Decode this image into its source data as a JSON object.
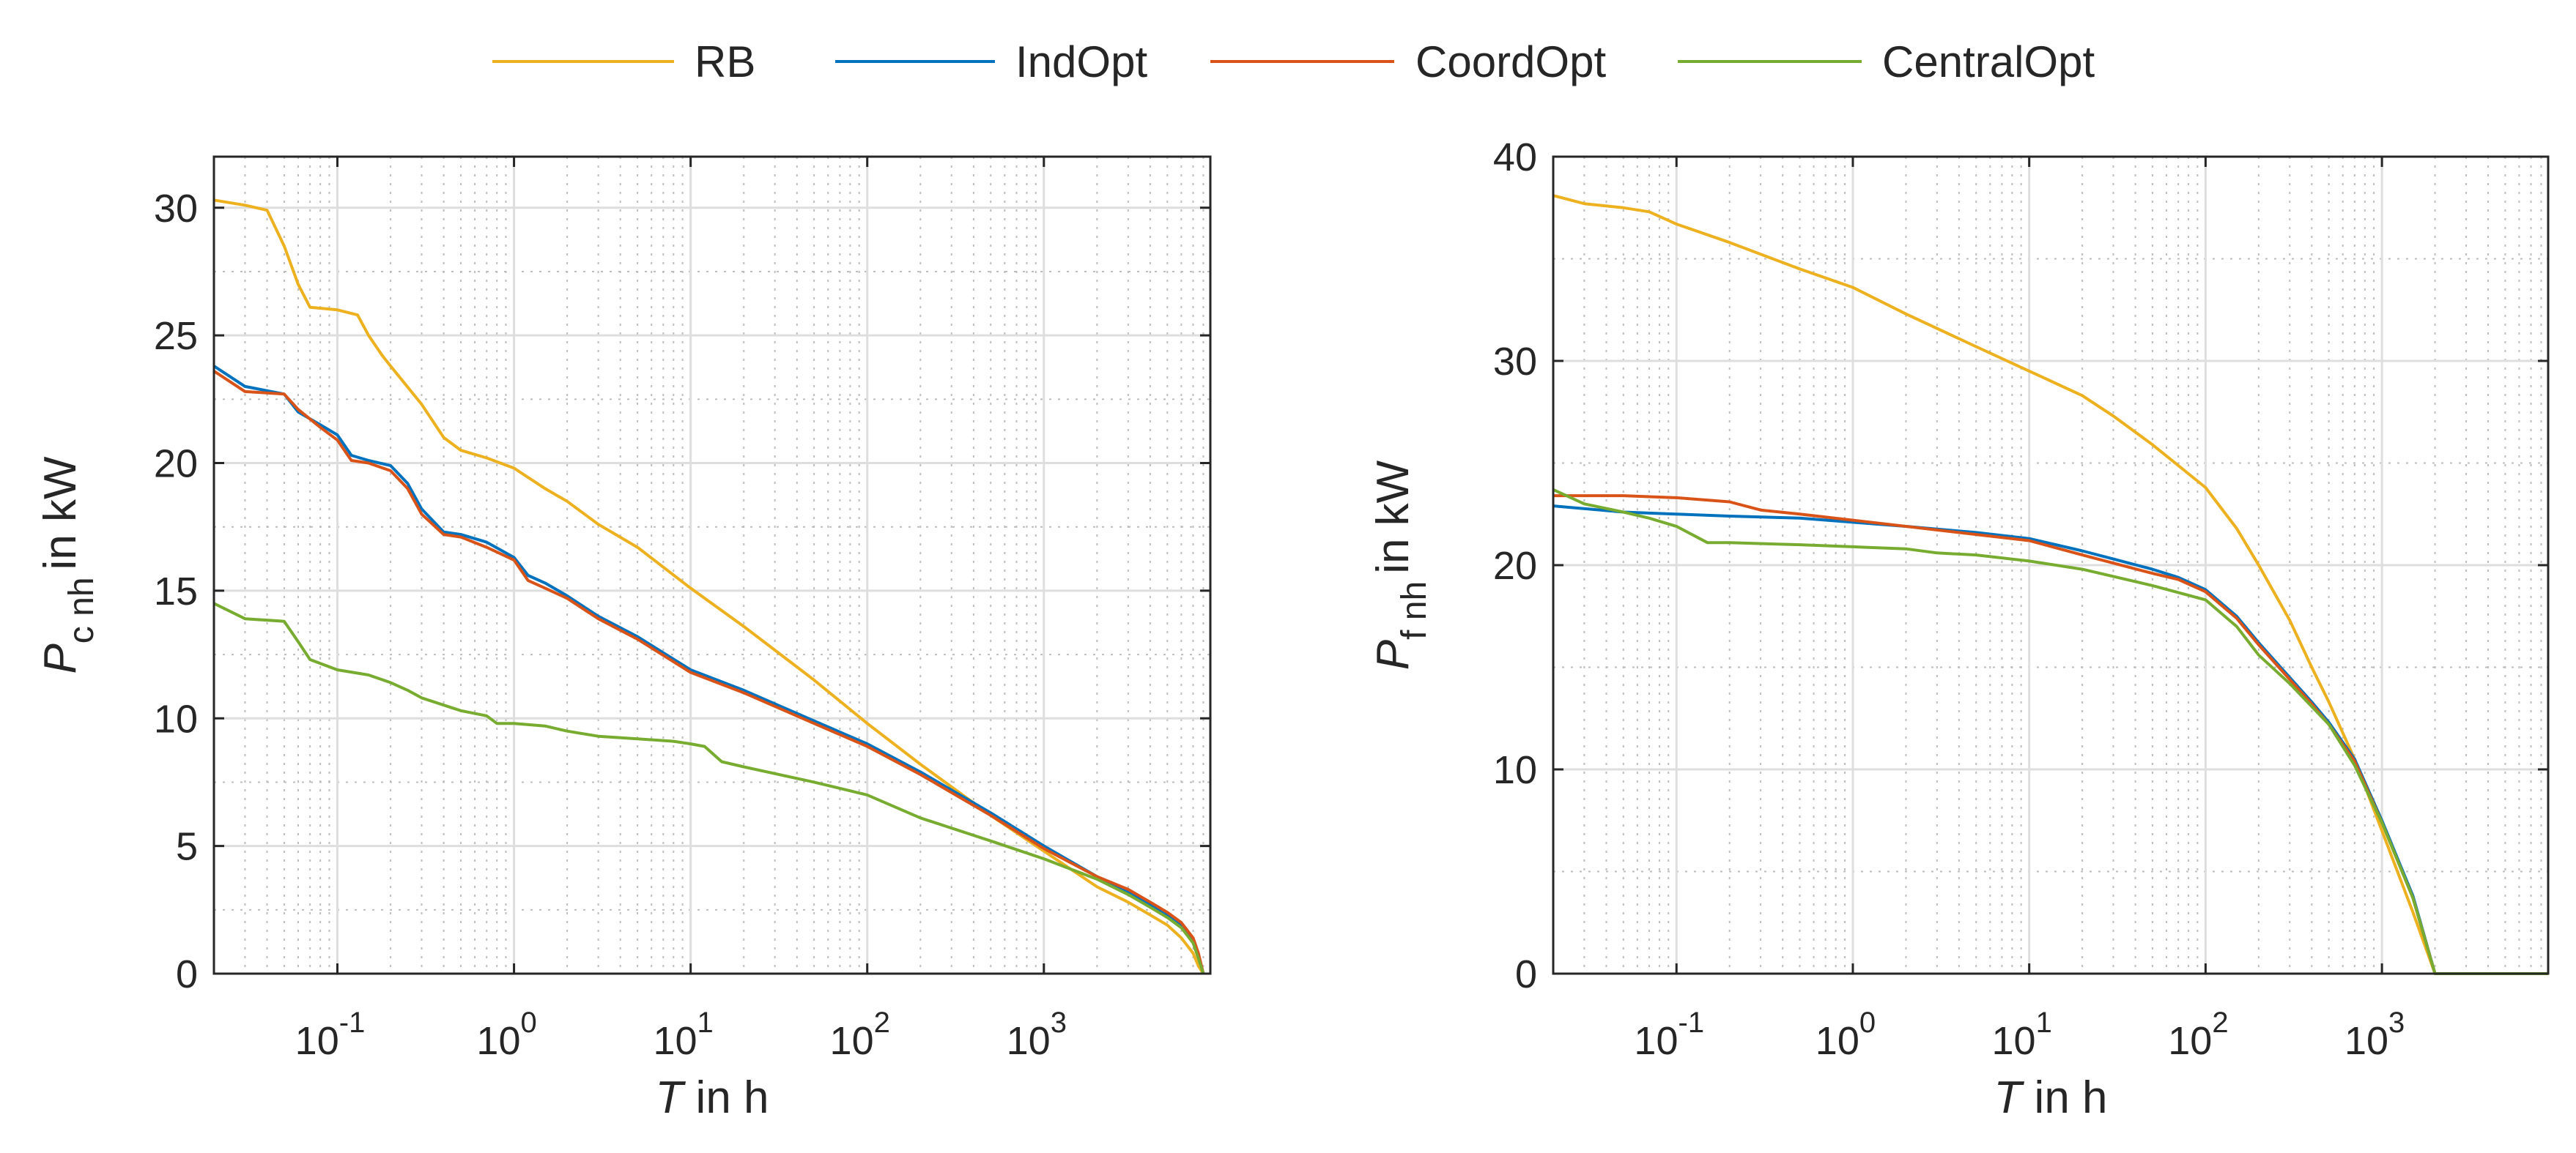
{
  "legend": [
    "RB",
    "IndOpt",
    "CoordOpt",
    "CentralOpt"
  ],
  "colors": {
    "RB": "#EDB120",
    "IndOpt": "#0072BD",
    "CoordOpt": "#D95319",
    "CentralOpt": "#77AC30"
  },
  "chart_data": [
    {
      "type": "line",
      "xscale": "log",
      "xlim": [
        0.02,
        8760
      ],
      "ylim": [
        0,
        32
      ],
      "xticks": [
        0.1,
        1,
        10,
        100,
        1000
      ],
      "xtick_labels": [
        [
          "10",
          "-1"
        ],
        [
          "10",
          "0"
        ],
        [
          "10",
          "1"
        ],
        [
          "10",
          "2"
        ],
        [
          "10",
          "3"
        ]
      ],
      "yticks": [
        0,
        5,
        10,
        15,
        20,
        25,
        30
      ],
      "ytick_labels": [
        "0",
        "5",
        "10",
        "15",
        "20",
        "25",
        "30"
      ],
      "xlabel": {
        "var": "T",
        "text": " in h"
      },
      "ylabel": {
        "var": "P",
        "sub": "c nh",
        "text": "in kW"
      },
      "grid": true,
      "series": [
        {
          "name": "RB",
          "x": [
            0.02,
            0.03,
            0.04,
            0.05,
            0.06,
            0.07,
            0.1,
            0.13,
            0.15,
            0.18,
            0.2,
            0.3,
            0.4,
            0.5,
            0.7,
            1,
            1.5,
            2,
            3,
            5,
            10,
            20,
            50,
            100,
            200,
            500,
            1000,
            2000,
            3000,
            4000,
            5000,
            6000,
            7000,
            7500,
            8000
          ],
          "y": [
            30.3,
            30.1,
            29.9,
            28.5,
            27.0,
            26.1,
            26.0,
            25.8,
            25.0,
            24.2,
            23.8,
            22.3,
            21.0,
            20.5,
            20.2,
            19.8,
            19.0,
            18.5,
            17.6,
            16.7,
            15.1,
            13.6,
            11.5,
            9.8,
            8.2,
            6.2,
            4.8,
            3.4,
            2.8,
            2.3,
            1.9,
            1.4,
            0.8,
            0.3,
            0
          ]
        },
        {
          "name": "IndOpt",
          "x": [
            0.02,
            0.03,
            0.05,
            0.06,
            0.08,
            0.1,
            0.12,
            0.15,
            0.2,
            0.25,
            0.3,
            0.4,
            0.5,
            0.7,
            1,
            1.2,
            1.5,
            2,
            3,
            5,
            10,
            20,
            50,
            100,
            200,
            500,
            1000,
            2000,
            3000,
            4000,
            5000,
            6000,
            7000,
            7500,
            8000
          ],
          "y": [
            23.8,
            23.0,
            22.7,
            22.0,
            21.5,
            21.1,
            20.3,
            20.1,
            19.9,
            19.2,
            18.2,
            17.3,
            17.2,
            16.9,
            16.3,
            15.6,
            15.3,
            14.8,
            14.0,
            13.2,
            11.9,
            11.1,
            9.9,
            9.0,
            7.9,
            6.3,
            5.0,
            3.8,
            3.2,
            2.7,
            2.3,
            1.9,
            1.3,
            0.7,
            0
          ]
        },
        {
          "name": "CoordOpt",
          "x": [
            0.02,
            0.03,
            0.05,
            0.06,
            0.08,
            0.1,
            0.12,
            0.15,
            0.2,
            0.25,
            0.3,
            0.4,
            0.5,
            0.7,
            1,
            1.2,
            1.5,
            2,
            3,
            5,
            10,
            20,
            50,
            100,
            200,
            500,
            1000,
            2000,
            3000,
            4000,
            5000,
            6000,
            7000,
            7500,
            8000
          ],
          "y": [
            23.6,
            22.8,
            22.7,
            22.1,
            21.4,
            20.9,
            20.1,
            20.0,
            19.7,
            19.0,
            18.0,
            17.2,
            17.1,
            16.7,
            16.2,
            15.4,
            15.1,
            14.7,
            13.9,
            13.1,
            11.8,
            11.0,
            9.8,
            8.9,
            7.8,
            6.2,
            4.9,
            3.8,
            3.3,
            2.8,
            2.4,
            2.0,
            1.4,
            0.8,
            0
          ]
        },
        {
          "name": "CentralOpt",
          "x": [
            0.02,
            0.03,
            0.05,
            0.06,
            0.07,
            0.1,
            0.15,
            0.2,
            0.25,
            0.3,
            0.5,
            0.7,
            0.8,
            1,
            1.5,
            2,
            3,
            5,
            8,
            10,
            12,
            15,
            20,
            50,
            100,
            200,
            500,
            1000,
            2000,
            3000,
            4000,
            5000,
            6000,
            7000,
            7500,
            8000
          ],
          "y": [
            14.5,
            13.9,
            13.8,
            13.0,
            12.3,
            11.9,
            11.7,
            11.4,
            11.1,
            10.8,
            10.3,
            10.1,
            9.8,
            9.8,
            9.7,
            9.5,
            9.3,
            9.2,
            9.1,
            9.0,
            8.9,
            8.3,
            8.1,
            7.5,
            7.0,
            6.1,
            5.2,
            4.5,
            3.7,
            3.1,
            2.6,
            2.2,
            1.8,
            1.2,
            0.6,
            0
          ]
        }
      ]
    },
    {
      "type": "line",
      "xscale": "log",
      "xlim": [
        0.02,
        8760
      ],
      "ylim": [
        0,
        40
      ],
      "xticks": [
        0.1,
        1,
        10,
        100,
        1000
      ],
      "xtick_labels": [
        [
          "10",
          "-1"
        ],
        [
          "10",
          "0"
        ],
        [
          "10",
          "1"
        ],
        [
          "10",
          "2"
        ],
        [
          "10",
          "3"
        ]
      ],
      "yticks": [
        0,
        10,
        20,
        30,
        40
      ],
      "ytick_labels": [
        "0",
        "10",
        "20",
        "30",
        "40"
      ],
      "xlabel": {
        "var": "T",
        "text": " in h"
      },
      "ylabel": {
        "var": "P",
        "sub": "f nh",
        "text": "in kW"
      },
      "grid": true,
      "series": [
        {
          "name": "RB",
          "x": [
            0.02,
            0.03,
            0.05,
            0.07,
            0.1,
            0.2,
            0.5,
            1,
            2,
            5,
            10,
            20,
            30,
            50,
            100,
            150,
            200,
            300,
            400,
            500,
            700,
            1000,
            1500,
            2000,
            8760
          ],
          "y": [
            38.1,
            37.7,
            37.5,
            37.3,
            36.7,
            35.8,
            34.5,
            33.6,
            32.3,
            30.7,
            29.5,
            28.3,
            27.3,
            25.9,
            23.8,
            21.8,
            20.0,
            17.3,
            15.0,
            13.3,
            10.5,
            7.0,
            3.0,
            0,
            0
          ]
        },
        {
          "name": "IndOpt",
          "x": [
            0.02,
            0.05,
            0.1,
            0.2,
            0.5,
            1,
            2,
            5,
            10,
            20,
            30,
            50,
            70,
            100,
            150,
            200,
            300,
            400,
            500,
            700,
            1000,
            1500,
            2000,
            8760
          ],
          "y": [
            22.9,
            22.6,
            22.5,
            22.4,
            22.3,
            22.1,
            21.9,
            21.6,
            21.3,
            20.7,
            20.3,
            19.8,
            19.4,
            18.8,
            17.5,
            16.2,
            14.5,
            13.3,
            12.3,
            10.5,
            7.5,
            3.8,
            0,
            0
          ]
        },
        {
          "name": "CoordOpt",
          "x": [
            0.02,
            0.05,
            0.1,
            0.2,
            0.3,
            0.5,
            1,
            2,
            5,
            10,
            20,
            30,
            50,
            70,
            100,
            150,
            200,
            300,
            400,
            500,
            700,
            1000,
            1500,
            2000,
            8760
          ],
          "y": [
            23.4,
            23.4,
            23.3,
            23.1,
            22.7,
            22.5,
            22.2,
            21.9,
            21.5,
            21.2,
            20.5,
            20.1,
            19.6,
            19.3,
            18.7,
            17.4,
            16.1,
            14.4,
            13.2,
            12.2,
            10.4,
            7.4,
            3.7,
            0,
            0
          ]
        },
        {
          "name": "CentralOpt",
          "x": [
            0.02,
            0.03,
            0.05,
            0.07,
            0.1,
            0.15,
            0.2,
            0.5,
            1,
            2,
            3,
            5,
            10,
            20,
            50,
            100,
            150,
            200,
            300,
            500,
            700,
            1000,
            1500,
            2000,
            8760
          ],
          "y": [
            23.7,
            23.0,
            22.6,
            22.3,
            21.9,
            21.1,
            21.1,
            21.0,
            20.9,
            20.8,
            20.6,
            20.5,
            20.2,
            19.8,
            19.0,
            18.3,
            17.0,
            15.6,
            14.2,
            12.2,
            10.2,
            7.4,
            3.7,
            0,
            0
          ]
        }
      ]
    }
  ]
}
